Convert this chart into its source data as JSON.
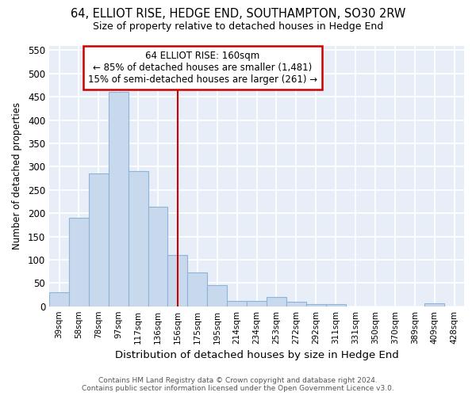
{
  "title": "64, ELLIOT RISE, HEDGE END, SOUTHAMPTON, SO30 2RW",
  "subtitle": "Size of property relative to detached houses in Hedge End",
  "xlabel": "Distribution of detached houses by size in Hedge End",
  "ylabel": "Number of detached properties",
  "bar_color": "#c8d9ee",
  "bar_edge_color": "#8cb4d8",
  "plot_bg_color": "#e8eef8",
  "fig_bg_color": "#ffffff",
  "grid_color": "#ffffff",
  "categories": [
    "39sqm",
    "58sqm",
    "78sqm",
    "97sqm",
    "117sqm",
    "136sqm",
    "156sqm",
    "175sqm",
    "195sqm",
    "214sqm",
    "234sqm",
    "253sqm",
    "272sqm",
    "292sqm",
    "311sqm",
    "331sqm",
    "350sqm",
    "370sqm",
    "389sqm",
    "409sqm",
    "428sqm"
  ],
  "values": [
    30,
    190,
    285,
    460,
    290,
    213,
    110,
    73,
    45,
    12,
    11,
    20,
    9,
    5,
    5,
    0,
    0,
    0,
    0,
    7,
    0
  ],
  "vline_index": 6,
  "vline_color": "#cc0000",
  "annotation_text": "64 ELLIOT RISE: 160sqm\n← 85% of detached houses are smaller (1,481)\n15% of semi-detached houses are larger (261) →",
  "annotation_box_facecolor": "#ffffff",
  "annotation_box_edgecolor": "#cc0000",
  "ylim": [
    0,
    560
  ],
  "yticks": [
    0,
    50,
    100,
    150,
    200,
    250,
    300,
    350,
    400,
    450,
    500,
    550
  ],
  "footer_line1": "Contains HM Land Registry data © Crown copyright and database right 2024.",
  "footer_line2": "Contains public sector information licensed under the Open Government Licence v3.0."
}
